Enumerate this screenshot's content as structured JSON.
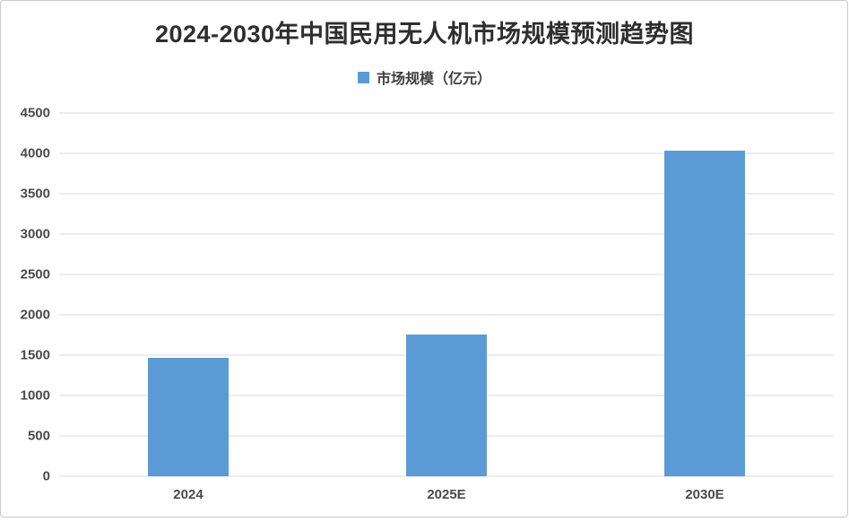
{
  "chart_data": {
    "type": "bar",
    "title": "2024-2030年中国民用无人机市场规模预测趋势图",
    "categories": [
      "2024",
      "2025E",
      "2030E"
    ],
    "series": [
      {
        "name": "市场规模（亿元）",
        "values": [
          1465,
          1755,
          4030
        ]
      }
    ],
    "xlabel": "",
    "ylabel": "",
    "ylim": [
      0,
      4500
    ],
    "yticks": [
      0,
      500,
      1000,
      1500,
      2000,
      2500,
      3000,
      3500,
      4000,
      4500
    ],
    "grid": true,
    "legend_position": "top",
    "bar_color": "#5B9BD5",
    "gridline_color": "#d9d9d9",
    "text_color": "#4a4a4a",
    "title_color": "#2e2e2e"
  }
}
